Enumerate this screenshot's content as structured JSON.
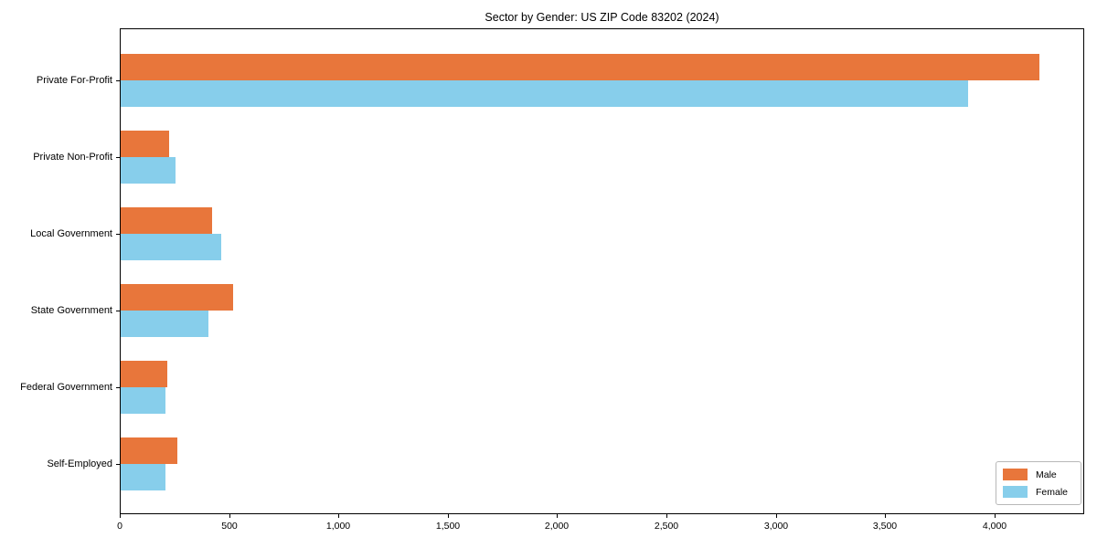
{
  "chart_data": {
    "type": "bar",
    "orientation": "horizontal",
    "title": "Sector by Gender: US ZIP Code 83202 (2024)",
    "categories": [
      "Private For-Profit",
      "Private Non-Profit",
      "Local Government",
      "State Government",
      "Federal Government",
      "Self-Employed"
    ],
    "series": [
      {
        "name": "Male",
        "color": "#E8763B",
        "values": [
          4200,
          220,
          420,
          515,
          212,
          258
        ]
      },
      {
        "name": "Female",
        "color": "#87CEEB",
        "values": [
          3875,
          250,
          460,
          400,
          206,
          206
        ]
      }
    ],
    "xlabel": "",
    "ylabel": "",
    "xlim": [
      0,
      4410
    ],
    "x_ticks": [
      0,
      500,
      1000,
      1500,
      2000,
      2500,
      3000,
      3500,
      4000
    ],
    "x_tick_labels": [
      "0",
      "500",
      "1,000",
      "1,500",
      "2,000",
      "2,500",
      "3,000",
      "3,500",
      "4,000"
    ],
    "grid": false,
    "legend_position": "lower right"
  },
  "colors": {
    "male": "#E8763B",
    "female": "#87CEEB",
    "axis": "#000000",
    "background": "#ffffff"
  }
}
